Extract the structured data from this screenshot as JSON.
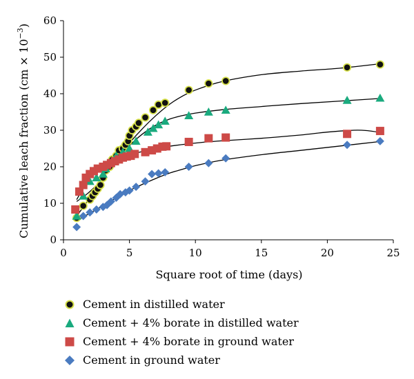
{
  "chart_data": {
    "type": "scatter",
    "xlabel": "Square root of time (days)",
    "ylabel_main": "Cumulative leach fraction (cm × 10",
    "ylabel_exp": "−3",
    "ylabel_close": ")",
    "xlim": [
      0,
      25
    ],
    "ylim": [
      0,
      60
    ],
    "xticks": [
      "0",
      "5",
      "10",
      "15",
      "20",
      "25"
    ],
    "yticks": [
      "0",
      "10",
      "20",
      "30",
      "40",
      "50",
      "60"
    ],
    "grid": false,
    "legend_position": "bottom",
    "series": [
      {
        "name": "Cement in distilled water",
        "marker": "circle",
        "fill": "#111111",
        "stroke": "#d6e04a",
        "points": [
          [
            1.0,
            6.0
          ],
          [
            1.5,
            9.3
          ],
          [
            2.0,
            11.0
          ],
          [
            2.2,
            12.0
          ],
          [
            2.4,
            13.0
          ],
          [
            2.6,
            14.0
          ],
          [
            2.8,
            15.0
          ],
          [
            3.0,
            17.0
          ],
          [
            3.2,
            19.0
          ],
          [
            3.5,
            20.0
          ],
          [
            3.7,
            22.0
          ],
          [
            4.0,
            23.0
          ],
          [
            4.2,
            24.5
          ],
          [
            4.5,
            25.0
          ],
          [
            4.7,
            26.0
          ],
          [
            4.9,
            27.0
          ],
          [
            5.0,
            28.5
          ],
          [
            5.2,
            30.0
          ],
          [
            5.5,
            31.0
          ],
          [
            5.7,
            32.0
          ],
          [
            6.2,
            33.5
          ],
          [
            6.8,
            35.5
          ],
          [
            7.2,
            37.0
          ],
          [
            7.7,
            37.5
          ],
          [
            9.5,
            41.0
          ],
          [
            11.0,
            42.8
          ],
          [
            12.3,
            43.5
          ],
          [
            21.5,
            47.2
          ],
          [
            24.0,
            48.0
          ]
        ],
        "trend": [
          [
            1.0,
            10.5
          ],
          [
            2.0,
            13.2
          ],
          [
            3.0,
            17.0
          ],
          [
            4.0,
            22.0
          ],
          [
            5.0,
            26.5
          ],
          [
            6.0,
            30.5
          ],
          [
            7.0,
            34.0
          ],
          [
            8.0,
            37.0
          ],
          [
            9.0,
            39.3
          ],
          [
            10.0,
            41.0
          ],
          [
            12.0,
            43.3
          ],
          [
            15.0,
            45.2
          ],
          [
            18.0,
            46.2
          ],
          [
            21.0,
            47.0
          ],
          [
            24.0,
            48.2
          ]
        ]
      },
      {
        "name": "Cement + 4% borate in distilled water",
        "marker": "triangle",
        "fill": "#1aaa7e",
        "stroke": "#1aaa7e",
        "points": [
          [
            1.0,
            6.5
          ],
          [
            1.5,
            12.0
          ],
          [
            2.0,
            16.0
          ],
          [
            2.5,
            17.0
          ],
          [
            3.0,
            18.0
          ],
          [
            3.2,
            19.5
          ],
          [
            3.5,
            21.0
          ],
          [
            4.0,
            23.0
          ],
          [
            4.5,
            24.0
          ],
          [
            5.0,
            25.0
          ],
          [
            5.5,
            27.0
          ],
          [
            6.4,
            29.5
          ],
          [
            6.8,
            30.5
          ],
          [
            7.2,
            31.5
          ],
          [
            7.7,
            32.5
          ],
          [
            9.5,
            34.0
          ],
          [
            11.0,
            35.0
          ],
          [
            12.3,
            35.5
          ],
          [
            21.5,
            38.2
          ],
          [
            24.0,
            38.8
          ]
        ]
      },
      {
        "name": "Cement + 4% borate in ground water",
        "marker": "square",
        "fill": "#cd4a47",
        "stroke": "#cd4a47",
        "points": [
          [
            0.9,
            8.3
          ],
          [
            1.2,
            13.2
          ],
          [
            1.5,
            15.0
          ],
          [
            1.7,
            17.0
          ],
          [
            2.0,
            18.0
          ],
          [
            2.3,
            18.8
          ],
          [
            2.6,
            19.5
          ],
          [
            3.0,
            20.0
          ],
          [
            3.3,
            20.5
          ],
          [
            3.6,
            21.0
          ],
          [
            3.9,
            21.5
          ],
          [
            4.2,
            22.0
          ],
          [
            4.5,
            22.5
          ],
          [
            4.8,
            22.8
          ],
          [
            5.1,
            23.0
          ],
          [
            5.4,
            23.5
          ],
          [
            6.2,
            24.0
          ],
          [
            6.7,
            24.5
          ],
          [
            7.1,
            25.0
          ],
          [
            7.5,
            25.5
          ],
          [
            7.8,
            25.6
          ],
          [
            9.5,
            26.8
          ],
          [
            11.0,
            27.8
          ],
          [
            12.3,
            28.0
          ],
          [
            21.5,
            29.0
          ],
          [
            24.0,
            29.8
          ]
        ],
        "trend": [
          [
            1.0,
            11.0
          ],
          [
            2.0,
            17.0
          ],
          [
            3.0,
            20.0
          ],
          [
            4.0,
            21.8
          ],
          [
            5.0,
            23.2
          ],
          [
            6.0,
            24.2
          ],
          [
            7.0,
            25.0
          ],
          [
            8.0,
            25.6
          ],
          [
            10.0,
            26.5
          ],
          [
            12.0,
            27.1
          ],
          [
            15.0,
            27.8
          ],
          [
            18.0,
            28.7
          ],
          [
            20.0,
            29.5
          ],
          [
            22.0,
            30.0
          ],
          [
            23.0,
            29.9
          ],
          [
            24.0,
            29.4
          ]
        ]
      },
      {
        "name": "Cement in ground water",
        "marker": "diamond",
        "fill": "#4a7bc0",
        "stroke": "#4a7bc0",
        "points": [
          [
            1.0,
            3.5
          ],
          [
            1.5,
            6.5
          ],
          [
            2.0,
            7.5
          ],
          [
            2.5,
            8.3
          ],
          [
            3.0,
            9.0
          ],
          [
            3.3,
            9.5
          ],
          [
            3.6,
            10.5
          ],
          [
            4.0,
            11.5
          ],
          [
            4.3,
            12.5
          ],
          [
            4.7,
            13.0
          ],
          [
            5.0,
            13.5
          ],
          [
            5.5,
            14.5
          ],
          [
            6.2,
            16.0
          ],
          [
            6.7,
            18.0
          ],
          [
            7.2,
            18.2
          ],
          [
            7.7,
            18.5
          ],
          [
            9.5,
            20.0
          ],
          [
            11.0,
            21.0
          ],
          [
            12.3,
            22.3
          ],
          [
            21.5,
            26.0
          ],
          [
            24.0,
            27.0
          ]
        ],
        "trend": [
          [
            1.0,
            5.2
          ],
          [
            2.0,
            7.3
          ],
          [
            3.0,
            9.3
          ],
          [
            4.0,
            11.5
          ],
          [
            5.0,
            13.5
          ],
          [
            6.0,
            15.2
          ],
          [
            7.0,
            16.8
          ],
          [
            8.0,
            18.2
          ],
          [
            9.0,
            19.3
          ],
          [
            10.0,
            20.3
          ],
          [
            12.0,
            21.8
          ],
          [
            15.0,
            23.3
          ],
          [
            18.0,
            24.5
          ],
          [
            21.0,
            25.7
          ],
          [
            24.0,
            26.9
          ]
        ]
      }
    ],
    "trend_three": [
      [
        1.0,
        6.5
      ],
      [
        2.0,
        11.5
      ],
      [
        3.0,
        17.0
      ],
      [
        4.0,
        21.8
      ],
      [
        5.0,
        25.8
      ],
      [
        6.0,
        29.0
      ],
      [
        7.0,
        31.4
      ],
      [
        8.0,
        33.0
      ],
      [
        9.0,
        34.0
      ],
      [
        10.0,
        34.7
      ],
      [
        12.0,
        35.6
      ],
      [
        15.0,
        36.5
      ],
      [
        18.0,
        37.3
      ],
      [
        21.0,
        38.0
      ],
      [
        24.0,
        38.7
      ]
    ]
  }
}
